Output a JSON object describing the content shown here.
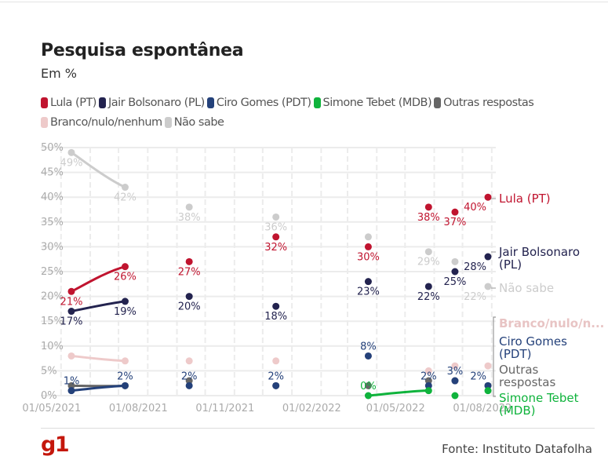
{
  "title": "Pesquisa espontânea",
  "subtitle": "Em %",
  "source": "Fonte: Instituto Datafolha",
  "logo": "g1",
  "chart_data": {
    "type": "line",
    "title": "Pesquisa espontânea",
    "subtitle": "Em %",
    "x": [
      "2021-05-12",
      "2021-07-08",
      "2021-09-14",
      "2021-12-15",
      "2022-03-23",
      "2022-05-26",
      "2022-06-23",
      "2022-07-28"
    ],
    "x_ticks": [
      "01/05/2021",
      "01/08/2021",
      "01/11/2021",
      "01/02/2022",
      "01/05/2022",
      "01/08/2022"
    ],
    "y_ticks": [
      "0%",
      "5%",
      "10%",
      "15%",
      "20%",
      "25%",
      "30%",
      "35%",
      "40%",
      "45%",
      "50%"
    ],
    "ylim": [
      0,
      50
    ],
    "grid": true,
    "legend": "top",
    "series": [
      {
        "name": "Lula (PT)",
        "end_label": "Lula (PT)",
        "color": "#c0142f",
        "values": [
          21,
          26,
          27,
          32,
          30,
          38,
          37,
          40
        ],
        "labels": [
          "21%",
          "26%",
          "27%",
          "32%",
          "30%",
          "38%",
          "37%",
          "40%"
        ]
      },
      {
        "name": "Jair Bolsonaro (PL)",
        "end_label": "Jair Bolsonaro (PL)",
        "color": "#23234f",
        "values": [
          17,
          19,
          20,
          18,
          23,
          22,
          25,
          28
        ],
        "labels": [
          "17%",
          "19%",
          "20%",
          "18%",
          "23%",
          "22%",
          "25%",
          "28%"
        ]
      },
      {
        "name": "Ciro Gomes (PDT)",
        "end_label": "Ciro Gomes (PDT)",
        "color": "#24417a",
        "values": [
          1,
          2,
          2,
          2,
          8,
          2,
          3,
          2
        ],
        "labels": [
          "1%",
          "2%",
          "2%",
          "2%",
          "8%",
          "2%",
          "3%",
          "2%"
        ]
      },
      {
        "name": "Simone Tebet (MDB)",
        "end_label": "Simone Tebet (MDB)",
        "color": "#0fb33c",
        "values": [
          null,
          null,
          null,
          null,
          0,
          1,
          0,
          1
        ],
        "labels": [
          null,
          null,
          null,
          null,
          "0%",
          null,
          null,
          null
        ]
      },
      {
        "name": "Outras respostas",
        "end_label": "Outras respostas",
        "color": "#666666",
        "values": [
          2,
          2,
          3,
          2,
          2,
          3,
          3,
          2
        ],
        "labels": [
          null,
          null,
          null,
          null,
          null,
          null,
          null,
          null
        ]
      },
      {
        "name": "Branco/nulo/nenhum",
        "end_label": "Branco/nulo/n...",
        "color": "#eecaca",
        "values": [
          8,
          7,
          7,
          7,
          8,
          5,
          6,
          6
        ],
        "labels": [
          null,
          null,
          null,
          null,
          null,
          null,
          null,
          null
        ]
      },
      {
        "name": "Não sabe",
        "end_label": "Não sabe",
        "color": "#cccccc",
        "values": [
          49,
          42,
          38,
          36,
          32,
          29,
          27,
          22
        ],
        "labels": [
          "49%",
          "42%",
          "38%",
          "36%",
          null,
          "29%",
          null,
          "22%"
        ]
      }
    ]
  }
}
